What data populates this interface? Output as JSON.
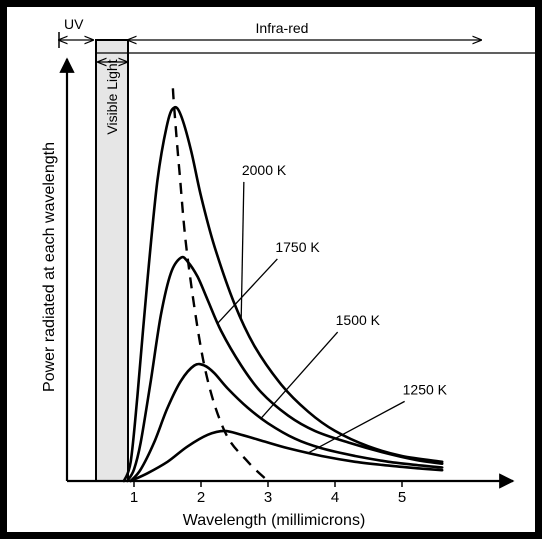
{
  "chart_data": {
    "type": "line",
    "title": "",
    "xlabel": "Wavelength (millimicrons)",
    "ylabel": "Power radiated at each wavelength",
    "xlim": [
      0,
      6.2
    ],
    "ylim": [
      0,
      1
    ],
    "x_ticks": [
      "1",
      "2",
      "3",
      "4",
      "5"
    ],
    "grid": false,
    "regions": [
      {
        "label": "UV",
        "x_range": [
          0,
          0.45
        ]
      },
      {
        "label": "Visible Light",
        "x_range": [
          0.45,
          0.95
        ]
      },
      {
        "label": "Infra-red",
        "x_range": [
          0.95,
          6.2
        ]
      }
    ],
    "series": [
      {
        "name": "2000 K",
        "x": [
          0.85,
          0.95,
          1.05,
          1.2,
          1.35,
          1.5,
          1.6,
          1.7,
          1.85,
          2.0,
          2.2,
          2.5,
          2.8,
          3.2,
          3.6,
          4.0,
          4.5,
          5.0,
          5.6
        ],
        "y": [
          0.0,
          0.05,
          0.22,
          0.52,
          0.78,
          0.93,
          0.97,
          0.95,
          0.86,
          0.74,
          0.61,
          0.46,
          0.35,
          0.25,
          0.18,
          0.13,
          0.09,
          0.065,
          0.05
        ]
      },
      {
        "name": "1750 K",
        "x": [
          0.9,
          1.0,
          1.1,
          1.25,
          1.4,
          1.55,
          1.7,
          1.8,
          1.95,
          2.1,
          2.3,
          2.6,
          2.9,
          3.3,
          3.7,
          4.2,
          4.7,
          5.2,
          5.6
        ],
        "y": [
          0.0,
          0.03,
          0.1,
          0.26,
          0.43,
          0.54,
          0.58,
          0.57,
          0.53,
          0.47,
          0.39,
          0.3,
          0.23,
          0.17,
          0.13,
          0.1,
          0.075,
          0.055,
          0.045
        ]
      },
      {
        "name": "1500 K",
        "x": [
          0.95,
          1.1,
          1.3,
          1.5,
          1.7,
          1.9,
          2.05,
          2.2,
          2.4,
          2.7,
          3.0,
          3.4,
          3.8,
          4.3,
          4.8,
          5.3,
          5.6
        ],
        "y": [
          0.0,
          0.03,
          0.1,
          0.19,
          0.26,
          0.3,
          0.3,
          0.28,
          0.24,
          0.19,
          0.15,
          0.11,
          0.085,
          0.065,
          0.05,
          0.04,
          0.035
        ]
      },
      {
        "name": "1250 K",
        "x": [
          0.95,
          1.2,
          1.5,
          1.8,
          2.1,
          2.35,
          2.6,
          2.9,
          3.3,
          3.8,
          4.3,
          4.8,
          5.3,
          5.6
        ],
        "y": [
          0.0,
          0.02,
          0.05,
          0.09,
          0.12,
          0.13,
          0.12,
          0.105,
          0.085,
          0.065,
          0.05,
          0.04,
          0.032,
          0.028
        ]
      }
    ],
    "peak_curve": {
      "style": "dashed",
      "x": [
        1.58,
        1.6,
        1.68,
        1.8,
        2.05,
        2.35,
        2.7,
        3.0
      ],
      "y": [
        1.02,
        0.97,
        0.8,
        0.58,
        0.3,
        0.13,
        0.05,
        0.0
      ]
    }
  }
}
